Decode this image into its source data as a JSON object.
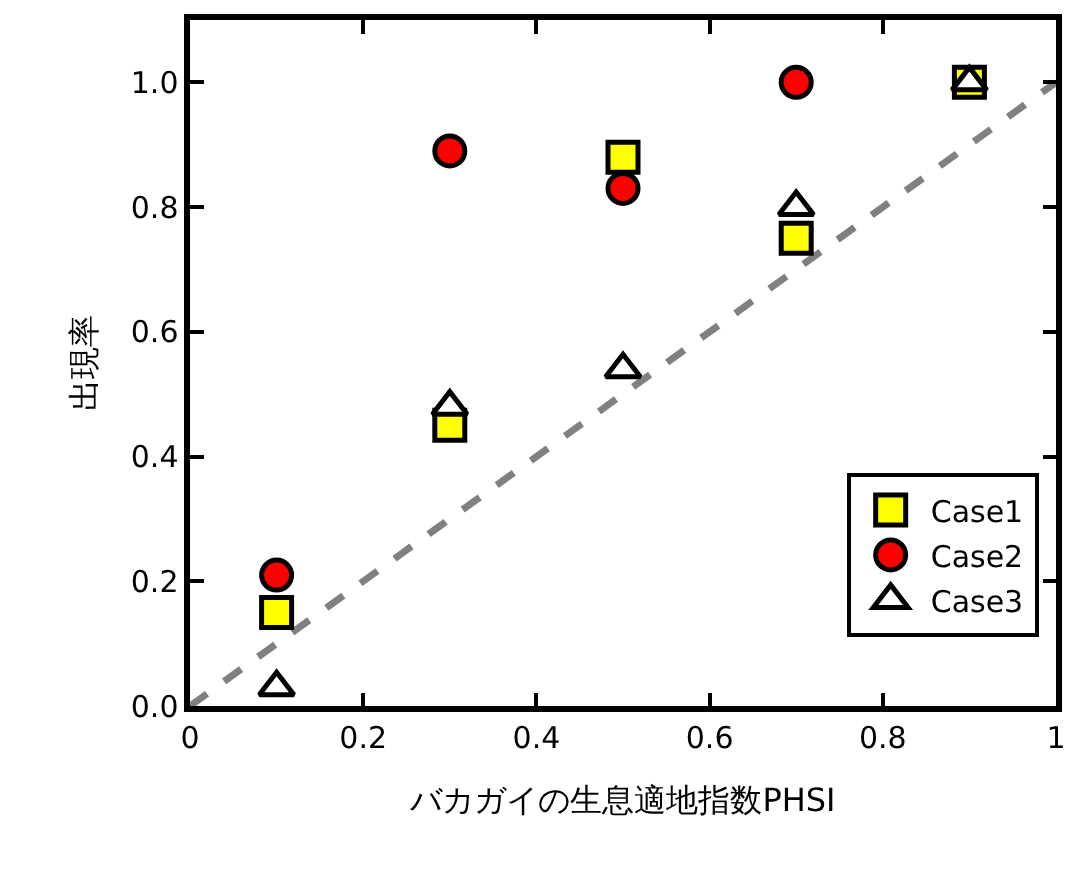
{
  "chart_data": {
    "type": "scatter",
    "xlabel": "バカガイの生息適地指数PHSI",
    "ylabel": "出現率",
    "x": [
      0.1,
      0.3,
      0.5,
      0.7,
      0.9
    ],
    "series": [
      {
        "name": "Case1",
        "color": "#ffff00",
        "marker": "square",
        "values": [
          0.15,
          0.45,
          0.88,
          0.75,
          1.0
        ]
      },
      {
        "name": "Case2",
        "color": "#ff0000",
        "marker": "circle",
        "values": [
          0.21,
          0.89,
          0.83,
          1.0,
          null
        ]
      },
      {
        "name": "Case3",
        "color": "#ffffff",
        "marker": "triangle",
        "values": [
          0.03,
          0.48,
          0.54,
          0.8,
          1.0
        ]
      },
      {
        "type": "line",
        "x": [
          0,
          1
        ],
        "color": "#808080",
        "line_style": "dashed",
        "values": [
          0,
          1
        ]
      }
    ],
    "xlim": [
      0,
      1
    ],
    "xticks": [
      0,
      0.2,
      0.4,
      0.6,
      0.8,
      1
    ],
    "ylim": [
      0,
      1.1
    ],
    "yticks": [
      {
        "value": 0,
        "label": "0.0"
      },
      0.2,
      0.4,
      0.6,
      0.8,
      {
        "value": 1,
        "label": "1.0"
      }
    ],
    "legend": "bottom right"
  }
}
